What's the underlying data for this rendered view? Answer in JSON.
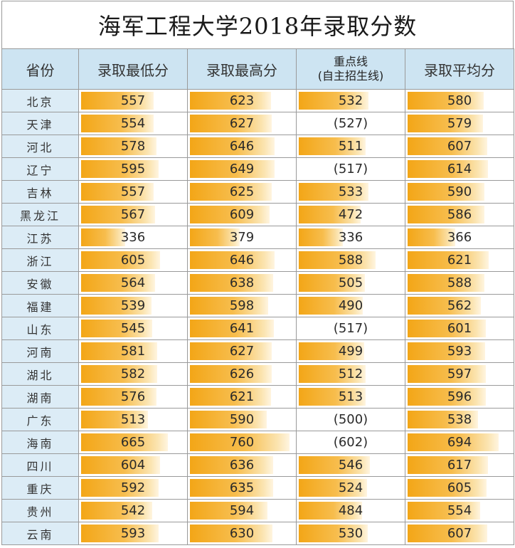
{
  "title": "海军工程大学2018年录取分数",
  "headers": {
    "province": "省份",
    "min": "录取最低分",
    "max": "录取最高分",
    "key_line_1": "重点线",
    "key_line_2": "(自主招生线)",
    "avg": "录取平均分"
  },
  "bar_scale_max": 800,
  "colors": {
    "header_bg": "#cde4f2",
    "province_bg": "#dcecf6",
    "bar_orange": "#f3a617"
  },
  "rows": [
    {
      "province": "北京",
      "min": "557",
      "max": "623",
      "key": "532",
      "avg": "580"
    },
    {
      "province": "天津",
      "min": "554",
      "max": "627",
      "key": "(527)",
      "avg": "579"
    },
    {
      "province": "河北",
      "min": "578",
      "max": "646",
      "key": "511",
      "avg": "607"
    },
    {
      "province": "辽宁",
      "min": "595",
      "max": "649",
      "key": "(517)",
      "avg": "614"
    },
    {
      "province": "吉林",
      "min": "557",
      "max": "625",
      "key": "533",
      "avg": "590"
    },
    {
      "province": "黑龙江",
      "min": "567",
      "max": "609",
      "key": "472",
      "avg": "586"
    },
    {
      "province": "江苏",
      "min": "336",
      "max": "379",
      "key": "336",
      "avg": "366"
    },
    {
      "province": "浙江",
      "min": "605",
      "max": "646",
      "key": "588",
      "avg": "621"
    },
    {
      "province": "安徽",
      "min": "564",
      "max": "638",
      "key": "505",
      "avg": "588"
    },
    {
      "province": "福建",
      "min": "539",
      "max": "598",
      "key": "490",
      "avg": "562"
    },
    {
      "province": "山东",
      "min": "545",
      "max": "641",
      "key": "(517)",
      "avg": "601"
    },
    {
      "province": "河南",
      "min": "581",
      "max": "627",
      "key": "499",
      "avg": "593"
    },
    {
      "province": "湖北",
      "min": "582",
      "max": "626",
      "key": "512",
      "avg": "597"
    },
    {
      "province": "湖南",
      "min": "576",
      "max": "621",
      "key": "513",
      "avg": "596"
    },
    {
      "province": "广东",
      "min": "513",
      "max": "590",
      "key": "(500)",
      "avg": "538"
    },
    {
      "province": "海南",
      "min": "665",
      "max": "760",
      "key": "(602)",
      "avg": "694"
    },
    {
      "province": "四川",
      "min": "604",
      "max": "636",
      "key": "546",
      "avg": "617"
    },
    {
      "province": "重庆",
      "min": "592",
      "max": "635",
      "key": "524",
      "avg": "605"
    },
    {
      "province": "贵州",
      "min": "542",
      "max": "594",
      "key": "484",
      "avg": "554"
    },
    {
      "province": "云南",
      "min": "593",
      "max": "630",
      "key": "530",
      "avg": "607"
    }
  ]
}
